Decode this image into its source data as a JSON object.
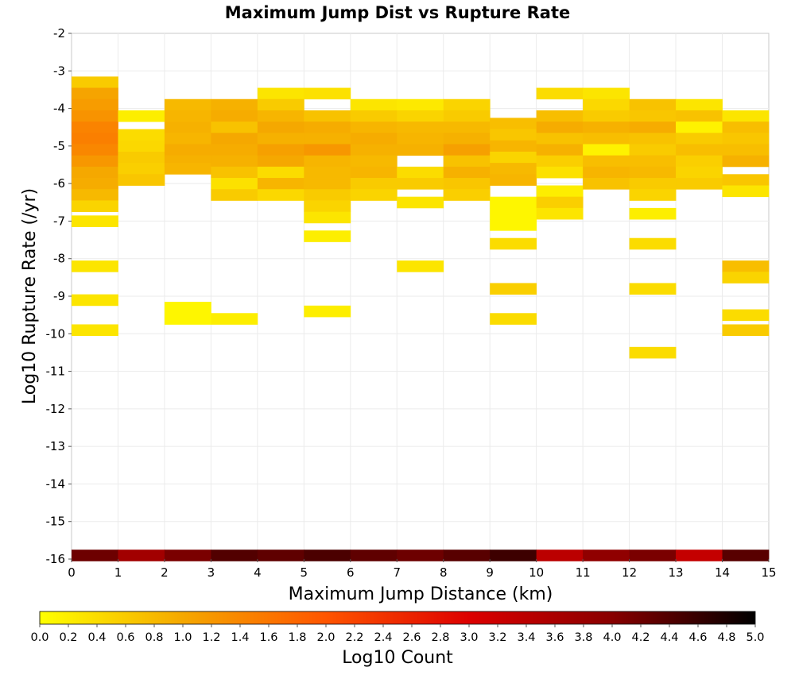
{
  "chart_data": {
    "type": "heatmap",
    "title": "Maximum Jump Dist vs Rupture Rate",
    "xlabel": "Maximum Jump Distance (km)",
    "ylabel": "Log10 Rupture Rate (/yr)",
    "xlim": [
      0,
      15
    ],
    "ylim": [
      -16,
      -2
    ],
    "x_ticks": [
      "0",
      "1",
      "2",
      "3",
      "4",
      "5",
      "6",
      "7",
      "8",
      "9",
      "10",
      "11",
      "12",
      "13",
      "14",
      "15"
    ],
    "y_ticks": [
      "-2",
      "-3",
      "-4",
      "-5",
      "-6",
      "-7",
      "-8",
      "-9",
      "-10",
      "-11",
      "-12",
      "-13",
      "-14",
      "-15",
      "-16"
    ],
    "grid": true,
    "x_bin_width": 1,
    "y_bin_height": 0.3,
    "colorscale": {
      "label": "Log10 Count",
      "range": [
        0,
        5
      ],
      "stops": [
        "#ffff00",
        "#f5a800",
        "#ff5500",
        "#dd0000",
        "#880000",
        "#000000"
      ],
      "ticks": [
        "0.0",
        "0.2",
        "0.4",
        "0.6",
        "0.8",
        "1.0",
        "1.2",
        "1.4",
        "1.6",
        "1.8",
        "2.0",
        "2.2",
        "2.4",
        "2.6",
        "2.8",
        "3.0",
        "3.2",
        "3.4",
        "3.6",
        "3.8",
        "4.0",
        "4.2",
        "4.4",
        "4.6",
        "4.8",
        "5.0"
      ]
    },
    "columns": [
      {
        "x": [
          0,
          1
        ],
        "cells": [
          [
            -3.3,
            0.6
          ],
          [
            -3.6,
            1.05
          ],
          [
            -3.9,
            1.15
          ],
          [
            -4.2,
            1.25
          ],
          [
            -4.5,
            1.45
          ],
          [
            -4.8,
            1.5
          ],
          [
            -5.1,
            1.4
          ],
          [
            -5.4,
            1.2
          ],
          [
            -5.7,
            1.0
          ],
          [
            -6.0,
            0.95
          ],
          [
            -6.3,
            0.8
          ],
          [
            -6.6,
            0.5
          ],
          [
            -7.0,
            0.3
          ],
          [
            -8.2,
            0.3
          ],
          [
            -9.1,
            0.3
          ],
          [
            -9.9,
            0.3
          ],
          [
            -15.9,
            4.2
          ]
        ]
      },
      {
        "x": [
          1,
          2
        ],
        "cells": [
          [
            -4.2,
            0.2
          ],
          [
            -4.7,
            0.4
          ],
          [
            -5.0,
            0.45
          ],
          [
            -5.3,
            0.6
          ],
          [
            -5.6,
            0.55
          ],
          [
            -5.9,
            0.65
          ],
          [
            -15.9,
            3.7
          ]
        ]
      },
      {
        "x": [
          2,
          3
        ],
        "cells": [
          [
            -3.9,
            0.8
          ],
          [
            -4.2,
            0.85
          ],
          [
            -4.5,
            0.9
          ],
          [
            -4.8,
            0.85
          ],
          [
            -5.1,
            0.95
          ],
          [
            -5.4,
            0.9
          ],
          [
            -5.6,
            0.85
          ],
          [
            -9.3,
            0.1
          ],
          [
            -9.6,
            0.1
          ],
          [
            -15.9,
            4.1
          ]
        ]
      },
      {
        "x": [
          3,
          4
        ],
        "cells": [
          [
            -3.9,
            0.9
          ],
          [
            -4.2,
            0.95
          ],
          [
            -4.5,
            0.7
          ],
          [
            -4.8,
            1.0
          ],
          [
            -5.1,
            0.95
          ],
          [
            -5.4,
            0.9
          ],
          [
            -5.7,
            0.7
          ],
          [
            -6.0,
            0.35
          ],
          [
            -6.3,
            0.6
          ],
          [
            -9.6,
            0.2
          ],
          [
            -15.9,
            4.4
          ]
        ]
      },
      {
        "x": [
          4,
          5
        ],
        "cells": [
          [
            -3.6,
            0.3
          ],
          [
            -3.9,
            0.6
          ],
          [
            -4.2,
            0.85
          ],
          [
            -4.5,
            1.0
          ],
          [
            -4.8,
            0.9
          ],
          [
            -5.1,
            1.1
          ],
          [
            -5.4,
            1.0
          ],
          [
            -5.7,
            0.4
          ],
          [
            -6.0,
            0.85
          ],
          [
            -6.3,
            0.45
          ],
          [
            -15.9,
            4.3
          ]
        ]
      },
      {
        "x": [
          5,
          6
        ],
        "cells": [
          [
            -3.6,
            0.35
          ],
          [
            -4.2,
            0.7
          ],
          [
            -4.5,
            0.95
          ],
          [
            -4.8,
            0.9
          ],
          [
            -5.1,
            1.2
          ],
          [
            -5.4,
            0.85
          ],
          [
            -5.7,
            0.8
          ],
          [
            -6.0,
            0.8
          ],
          [
            -6.3,
            0.6
          ],
          [
            -6.6,
            0.5
          ],
          [
            -6.9,
            0.3
          ],
          [
            -7.4,
            0.2
          ],
          [
            -9.4,
            0.2
          ],
          [
            -15.9,
            4.45
          ]
        ]
      },
      {
        "x": [
          6,
          7
        ],
        "cells": [
          [
            -3.9,
            0.3
          ],
          [
            -4.2,
            0.6
          ],
          [
            -4.5,
            0.85
          ],
          [
            -4.8,
            0.95
          ],
          [
            -5.1,
            0.9
          ],
          [
            -5.4,
            0.8
          ],
          [
            -5.7,
            0.85
          ],
          [
            -6.0,
            0.6
          ],
          [
            -6.3,
            0.5
          ],
          [
            -15.9,
            4.3
          ]
        ]
      },
      {
        "x": [
          7,
          8
        ],
        "cells": [
          [
            -3.9,
            0.25
          ],
          [
            -4.2,
            0.5
          ],
          [
            -4.5,
            0.8
          ],
          [
            -4.8,
            0.85
          ],
          [
            -5.1,
            0.9
          ],
          [
            -5.7,
            0.4
          ],
          [
            -6.0,
            0.6
          ],
          [
            -6.5,
            0.3
          ],
          [
            -8.2,
            0.3
          ],
          [
            -15.9,
            4.2
          ]
        ]
      },
      {
        "x": [
          8,
          9
        ],
        "cells": [
          [
            -3.9,
            0.5
          ],
          [
            -4.2,
            0.6
          ],
          [
            -4.5,
            0.8
          ],
          [
            -4.8,
            0.9
          ],
          [
            -5.1,
            1.1
          ],
          [
            -5.4,
            0.7
          ],
          [
            -5.7,
            0.9
          ],
          [
            -6.0,
            0.65
          ],
          [
            -6.3,
            0.55
          ],
          [
            -15.9,
            4.35
          ]
        ]
      },
      {
        "x": [
          9,
          10
        ],
        "cells": [
          [
            -4.4,
            0.75
          ],
          [
            -4.7,
            0.65
          ],
          [
            -5.0,
            0.85
          ],
          [
            -5.3,
            0.5
          ],
          [
            -5.6,
            0.8
          ],
          [
            -5.9,
            0.85
          ],
          [
            -6.5,
            0.1
          ],
          [
            -6.8,
            0.1
          ],
          [
            -7.1,
            0.1
          ],
          [
            -7.6,
            0.4
          ],
          [
            -8.8,
            0.55
          ],
          [
            -9.6,
            0.4
          ],
          [
            -15.9,
            4.55
          ]
        ]
      },
      {
        "x": [
          10,
          11
        ],
        "cells": [
          [
            -3.6,
            0.4
          ],
          [
            -4.2,
            0.75
          ],
          [
            -4.5,
            0.95
          ],
          [
            -4.8,
            0.7
          ],
          [
            -5.1,
            0.9
          ],
          [
            -5.4,
            0.55
          ],
          [
            -5.7,
            0.35
          ],
          [
            -6.2,
            0.2
          ],
          [
            -6.5,
            0.55
          ],
          [
            -6.8,
            0.3
          ],
          [
            -15.9,
            3.4
          ]
        ]
      },
      {
        "x": [
          11,
          12
        ],
        "cells": [
          [
            -3.6,
            0.3
          ],
          [
            -3.9,
            0.45
          ],
          [
            -4.2,
            0.6
          ],
          [
            -4.5,
            0.9
          ],
          [
            -4.8,
            0.75
          ],
          [
            -5.1,
            0.15
          ],
          [
            -5.4,
            0.75
          ],
          [
            -5.7,
            0.85
          ],
          [
            -6.0,
            0.7
          ],
          [
            -15.9,
            3.9
          ]
        ]
      },
      {
        "x": [
          12,
          13
        ],
        "cells": [
          [
            -3.9,
            0.7
          ],
          [
            -4.2,
            0.65
          ],
          [
            -4.5,
            0.95
          ],
          [
            -4.8,
            0.7
          ],
          [
            -5.1,
            0.6
          ],
          [
            -5.4,
            0.75
          ],
          [
            -5.7,
            0.8
          ],
          [
            -6.0,
            0.6
          ],
          [
            -6.3,
            0.5
          ],
          [
            -6.8,
            0.2
          ],
          [
            -7.6,
            0.4
          ],
          [
            -8.8,
            0.4
          ],
          [
            -10.5,
            0.4
          ],
          [
            -15.9,
            4.1
          ]
        ]
      },
      {
        "x": [
          13,
          14
        ],
        "cells": [
          [
            -3.9,
            0.3
          ],
          [
            -4.2,
            0.7
          ],
          [
            -4.5,
            0.15
          ],
          [
            -4.8,
            0.6
          ],
          [
            -5.1,
            0.75
          ],
          [
            -5.4,
            0.55
          ],
          [
            -5.7,
            0.5
          ],
          [
            -6.0,
            0.6
          ],
          [
            -15.9,
            3.3
          ]
        ]
      },
      {
        "x": [
          14,
          15
        ],
        "cells": [
          [
            -4.2,
            0.3
          ],
          [
            -4.5,
            0.75
          ],
          [
            -4.8,
            0.65
          ],
          [
            -5.1,
            0.75
          ],
          [
            -5.4,
            0.9
          ],
          [
            -5.9,
            0.65
          ],
          [
            -6.2,
            0.3
          ],
          [
            -8.2,
            0.75
          ],
          [
            -8.5,
            0.5
          ],
          [
            -9.5,
            0.4
          ],
          [
            -9.9,
            0.6
          ],
          [
            -15.9,
            4.35
          ]
        ]
      }
    ]
  }
}
